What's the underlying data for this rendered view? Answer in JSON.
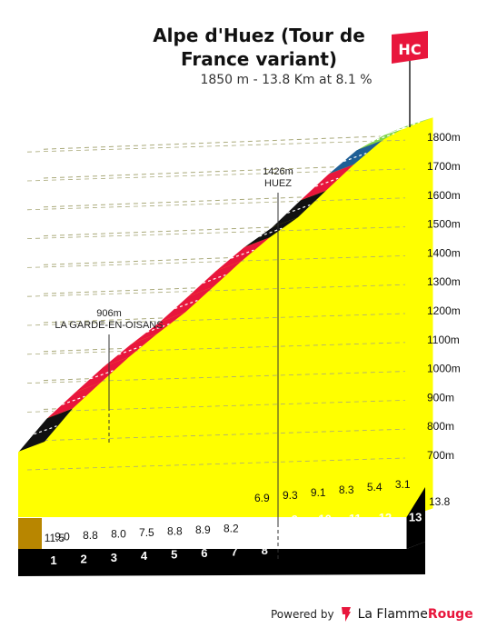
{
  "header": {
    "title": "Alpe d'Huez (Tour de France variant)",
    "subtitle": "1850 m - 13.8 Km at 8.1 %",
    "category": "HC"
  },
  "footer": {
    "powered_by": "Powered by",
    "brand_regular": "La Flamme",
    "brand_bold": "Rouge"
  },
  "colors": {
    "fill": "#ffff00",
    "base": "#b88600",
    "ground": "#000000",
    "gradient_black": "#111111",
    "gradient_red": "#e8163c",
    "gradient_blue": "#1f5f96",
    "gradient_green": "#7fd34a",
    "grid": "#a9a979",
    "flag": "#e8163c"
  },
  "chart_data": {
    "type": "area",
    "title": "Alpe d'Huez (Tour de France variant)",
    "xlabel": "",
    "ylabel": "",
    "x_total_km": 13.8,
    "xlim": [
      0,
      13.8
    ],
    "ylim": [
      600,
      1850
    ],
    "y_ticks": [
      700,
      800,
      900,
      1000,
      1100,
      1200,
      1300,
      1400,
      1500,
      1600,
      1700,
      1800
    ],
    "y_unit": "m",
    "x_end_label": "13.8",
    "km_labels": [
      "1",
      "2",
      "3",
      "4",
      "5",
      "6",
      "7",
      "8",
      "9",
      "10",
      "11",
      "12",
      "13"
    ],
    "segments": [
      {
        "km": 1,
        "gradient": 11.5,
        "color": "black"
      },
      {
        "km": 2,
        "gradient": 9.0,
        "color": "red"
      },
      {
        "km": 3,
        "gradient": 8.8,
        "color": "red"
      },
      {
        "km": 4,
        "gradient": 8.0,
        "color": "red"
      },
      {
        "km": 5,
        "gradient": 7.5,
        "color": "red"
      },
      {
        "km": 6,
        "gradient": 8.8,
        "color": "red"
      },
      {
        "km": 7,
        "gradient": 8.9,
        "color": "red"
      },
      {
        "km": 8,
        "gradient": 8.2,
        "color": "red"
      },
      {
        "km": 9,
        "gradient": 6.9,
        "color": "black"
      },
      {
        "km": 10,
        "gradient": 9.3,
        "color": "black"
      },
      {
        "km": 11,
        "gradient": 9.1,
        "color": "red"
      },
      {
        "km": 12,
        "gradient": 8.3,
        "color": "blue"
      },
      {
        "km": 13,
        "gradient": 5.4,
        "color": "green"
      },
      {
        "km": 13.8,
        "gradient": 3.1,
        "color": "green"
      }
    ],
    "gradient_labels": [
      "11.5",
      "9.0",
      "8.8",
      "8.0",
      "7.5",
      "8.8",
      "8.9",
      "8.2",
      "6.9",
      "9.3",
      "9.1",
      "8.3",
      "5.4",
      "3.1"
    ],
    "annotations": [
      {
        "km": 3.2,
        "altitude": 906,
        "altitude_label": "906m",
        "name": "LA GARDE-EN-OISANS"
      },
      {
        "km": 9.0,
        "altitude": 1426,
        "altitude_label": "1426m",
        "name": "HUEZ"
      }
    ]
  }
}
